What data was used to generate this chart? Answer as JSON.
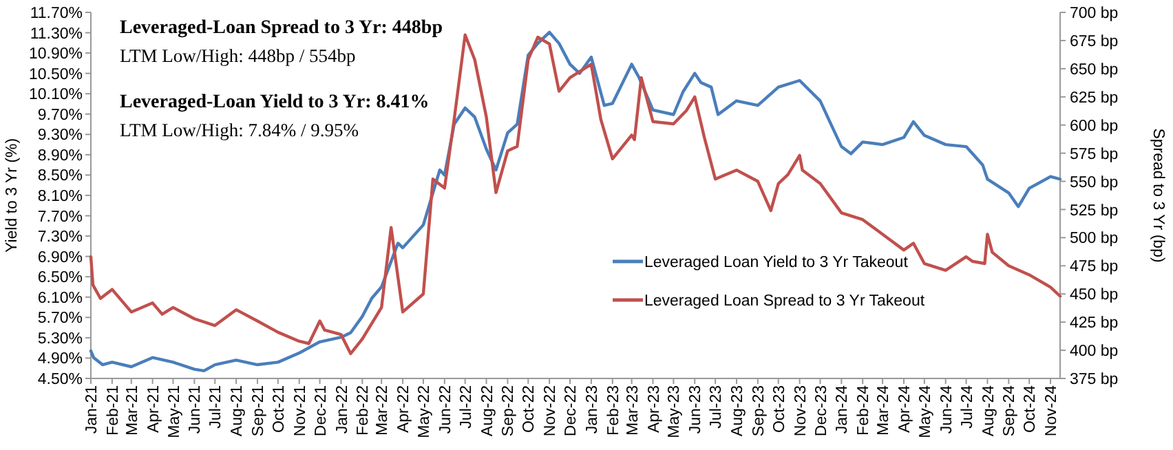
{
  "chart_data": {
    "type": "line",
    "ylabel": "Yield to 3 Yr (%)",
    "y2label": "Spread to 3 Yr (bp)",
    "annotations": [
      "Leveraged-Loan Spread to 3 Yr: 448bp",
      "LTM Low/High: 448bp / 554bp",
      "Leveraged-Loan Yield to 3 Yr: 8.41%",
      "LTM Low/High: 7.84% / 9.95%"
    ],
    "xlim": [
      "2021-01-01",
      "2024-11-15"
    ],
    "xticks": [
      {
        "value": "2021-01-01",
        "label": "Jan-21"
      },
      {
        "value": "2021-02-01",
        "label": "Feb-21"
      },
      {
        "value": "2021-03-01",
        "label": "Mar-21"
      },
      {
        "value": "2021-04-01",
        "label": "Apr-21"
      },
      {
        "value": "2021-05-01",
        "label": "May-21"
      },
      {
        "value": "2021-06-01",
        "label": "Jun-21"
      },
      {
        "value": "2021-07-01",
        "label": "Jul-21"
      },
      {
        "value": "2021-08-01",
        "label": "Aug-21"
      },
      {
        "value": "2021-09-01",
        "label": "Sep-21"
      },
      {
        "value": "2021-10-01",
        "label": "Oct-21"
      },
      {
        "value": "2021-11-01",
        "label": "Nov-21"
      },
      {
        "value": "2021-12-01",
        "label": "Dec-21"
      },
      {
        "value": "2022-01-01",
        "label": "Jan-22"
      },
      {
        "value": "2022-02-01",
        "label": "Feb-22"
      },
      {
        "value": "2022-03-01",
        "label": "Mar-22"
      },
      {
        "value": "2022-04-01",
        "label": "Apr-22"
      },
      {
        "value": "2022-05-01",
        "label": "May-22"
      },
      {
        "value": "2022-06-01",
        "label": "Jun-22"
      },
      {
        "value": "2022-07-01",
        "label": "Jul-22"
      },
      {
        "value": "2022-08-01",
        "label": "Aug-22"
      },
      {
        "value": "2022-09-01",
        "label": "Sep-22"
      },
      {
        "value": "2022-10-01",
        "label": "Oct-22"
      },
      {
        "value": "2022-11-01",
        "label": "Nov-22"
      },
      {
        "value": "2022-12-01",
        "label": "Dec-22"
      },
      {
        "value": "2023-01-01",
        "label": "Jan-23"
      },
      {
        "value": "2023-02-01",
        "label": "Feb-23"
      },
      {
        "value": "2023-03-01",
        "label": "Mar-23"
      },
      {
        "value": "2023-04-01",
        "label": "Apr-23"
      },
      {
        "value": "2023-05-01",
        "label": "May-23"
      },
      {
        "value": "2023-06-01",
        "label": "Jun-23"
      },
      {
        "value": "2023-07-01",
        "label": "Jul-23"
      },
      {
        "value": "2023-08-01",
        "label": "Aug-23"
      },
      {
        "value": "2023-09-01",
        "label": "Sep-23"
      },
      {
        "value": "2023-10-01",
        "label": "Oct-23"
      },
      {
        "value": "2023-11-01",
        "label": "Nov-23"
      },
      {
        "value": "2023-12-01",
        "label": "Dec-23"
      },
      {
        "value": "2024-01-01",
        "label": "Jan-24"
      },
      {
        "value": "2024-02-01",
        "label": "Feb-24"
      },
      {
        "value": "2024-03-01",
        "label": "Mar-24"
      },
      {
        "value": "2024-04-01",
        "label": "Apr-24"
      },
      {
        "value": "2024-05-01",
        "label": "May-24"
      },
      {
        "value": "2024-06-01",
        "label": "Jun-24"
      },
      {
        "value": "2024-07-01",
        "label": "Jul-24"
      },
      {
        "value": "2024-08-01",
        "label": "Aug-24"
      },
      {
        "value": "2024-09-01",
        "label": "Sep-24"
      },
      {
        "value": "2024-10-01",
        "label": "Oct-24"
      },
      {
        "value": "2024-11-01",
        "label": "Nov-24"
      }
    ],
    "ylim": [
      4.5,
      11.7
    ],
    "yticks": [
      {
        "value": 4.5,
        "label": "4.50%"
      },
      {
        "value": 4.9,
        "label": "4.90%"
      },
      {
        "value": 5.3,
        "label": "5.30%"
      },
      {
        "value": 5.7,
        "label": "5.70%"
      },
      {
        "value": 6.1,
        "label": "6.10%"
      },
      {
        "value": 6.5,
        "label": "6.50%"
      },
      {
        "value": 6.9,
        "label": "6.90%"
      },
      {
        "value": 7.3,
        "label": "7.30%"
      },
      {
        "value": 7.7,
        "label": "7.70%"
      },
      {
        "value": 8.1,
        "label": "8.10%"
      },
      {
        "value": 8.5,
        "label": "8.50%"
      },
      {
        "value": 8.9,
        "label": "8.90%"
      },
      {
        "value": 9.3,
        "label": "9.30%"
      },
      {
        "value": 9.7,
        "label": "9.70%"
      },
      {
        "value": 10.1,
        "label": "10.10%"
      },
      {
        "value": 10.5,
        "label": "10.50%"
      },
      {
        "value": 10.9,
        "label": "10.90%"
      },
      {
        "value": 11.3,
        "label": "11.30%"
      },
      {
        "value": 11.7,
        "label": "11.70%"
      }
    ],
    "y2lim": [
      375,
      700
    ],
    "y2ticks": [
      {
        "value": 375,
        "label": "375 bp"
      },
      {
        "value": 400,
        "label": "400 bp"
      },
      {
        "value": 425,
        "label": "425 bp"
      },
      {
        "value": 450,
        "label": "450 bp"
      },
      {
        "value": 475,
        "label": "475 bp"
      },
      {
        "value": 500,
        "label": "500 bp"
      },
      {
        "value": 525,
        "label": "525 bp"
      },
      {
        "value": 550,
        "label": "550 bp"
      },
      {
        "value": 575,
        "label": "575 bp"
      },
      {
        "value": 600,
        "label": "600 bp"
      },
      {
        "value": 625,
        "label": "625 bp"
      },
      {
        "value": 650,
        "label": "650 bp"
      },
      {
        "value": 675,
        "label": "675 bp"
      },
      {
        "value": 700,
        "label": "700 bp"
      }
    ],
    "grid": false,
    "legend": "right",
    "line_style": "solid",
    "series": [
      {
        "name": "Leveraged Loan Yield to 3 Yr Takeout",
        "color": "#4a7ebb",
        "x": [
          "2021-01-01",
          "2021-01-05",
          "2021-01-18",
          "2021-02-01",
          "2021-03-01",
          "2021-04-01",
          "2021-05-01",
          "2021-06-01",
          "2021-06-15",
          "2021-07-01",
          "2021-08-01",
          "2021-09-01",
          "2021-10-01",
          "2021-11-01",
          "2021-12-01",
          "2022-01-01",
          "2022-01-15",
          "2022-02-01",
          "2022-02-15",
          "2022-03-01",
          "2022-03-15",
          "2022-03-25",
          "2022-04-01",
          "2022-05-01",
          "2022-05-15",
          "2022-05-25",
          "2022-06-01",
          "2022-06-15",
          "2022-07-01",
          "2022-07-15",
          "2022-08-01",
          "2022-08-15",
          "2022-09-01",
          "2022-09-15",
          "2022-10-01",
          "2022-10-15",
          "2022-11-01",
          "2022-11-15",
          "2022-12-01",
          "2022-12-15",
          "2023-01-01",
          "2023-01-20",
          "2023-02-01",
          "2023-03-01",
          "2023-03-12",
          "2023-04-01",
          "2023-05-01",
          "2023-05-15",
          "2023-06-01",
          "2023-06-10",
          "2023-06-25",
          "2023-07-05",
          "2023-08-01",
          "2023-09-01",
          "2023-10-01",
          "2023-11-01",
          "2023-12-01",
          "2023-12-15",
          "2024-01-01",
          "2024-01-15",
          "2024-02-01",
          "2024-03-01",
          "2024-04-01",
          "2024-04-15",
          "2024-05-01",
          "2024-06-01",
          "2024-07-01",
          "2024-07-25",
          "2024-08-01",
          "2024-09-01",
          "2024-09-15",
          "2024-10-01",
          "2024-11-01",
          "2024-11-15"
        ],
        "values": [
          5.04,
          4.91,
          4.77,
          4.82,
          4.73,
          4.91,
          4.82,
          4.68,
          4.65,
          4.77,
          4.86,
          4.77,
          4.82,
          5.0,
          5.22,
          5.31,
          5.4,
          5.72,
          6.08,
          6.3,
          6.8,
          7.16,
          7.07,
          7.52,
          8.15,
          8.6,
          8.5,
          9.5,
          9.82,
          9.64,
          9.01,
          8.6,
          9.33,
          9.5,
          10.86,
          11.09,
          11.31,
          11.09,
          10.68,
          10.5,
          10.82,
          9.87,
          9.91,
          10.68,
          10.41,
          9.78,
          9.69,
          10.14,
          10.5,
          10.32,
          10.23,
          9.69,
          9.96,
          9.87,
          10.23,
          10.36,
          9.96,
          9.55,
          9.06,
          8.92,
          9.15,
          9.1,
          9.24,
          9.55,
          9.28,
          9.1,
          9.06,
          8.7,
          8.42,
          8.15,
          7.88,
          8.24,
          8.47,
          8.42
        ]
      },
      {
        "name": "Leveraged Loan Spread to 3 Yr Takeout",
        "color": "#c0504d",
        "axis": "y2",
        "x": [
          "2021-01-01",
          "2021-01-04",
          "2021-01-15",
          "2021-02-01",
          "2021-03-01",
          "2021-04-01",
          "2021-04-15",
          "2021-05-01",
          "2021-06-01",
          "2021-07-01",
          "2021-08-01",
          "2021-09-01",
          "2021-10-01",
          "2021-11-01",
          "2021-11-15",
          "2021-12-01",
          "2021-12-08",
          "2022-01-01",
          "2022-01-15",
          "2022-02-01",
          "2022-03-01",
          "2022-03-15",
          "2022-04-01",
          "2022-05-01",
          "2022-05-15",
          "2022-06-01",
          "2022-06-15",
          "2022-07-01",
          "2022-07-15",
          "2022-08-01",
          "2022-08-15",
          "2022-09-01",
          "2022-09-15",
          "2022-10-01",
          "2022-10-15",
          "2022-11-01",
          "2022-11-15",
          "2022-12-01",
          "2023-01-01",
          "2023-01-15",
          "2023-02-01",
          "2023-03-01",
          "2023-03-05",
          "2023-03-15",
          "2023-04-01",
          "2023-05-01",
          "2023-05-20",
          "2023-06-01",
          "2023-06-15",
          "2023-07-01",
          "2023-08-01",
          "2023-09-01",
          "2023-09-20",
          "2023-10-01",
          "2023-10-15",
          "2023-11-01",
          "2023-11-05",
          "2023-12-01",
          "2024-01-01",
          "2024-02-01",
          "2024-03-01",
          "2024-04-01",
          "2024-04-15",
          "2024-05-01",
          "2024-06-01",
          "2024-07-01",
          "2024-07-10",
          "2024-07-28",
          "2024-08-01",
          "2024-08-08",
          "2024-09-01",
          "2024-10-01",
          "2024-11-01",
          "2024-11-15"
        ],
        "values": [
          483,
          458,
          446,
          454,
          434,
          442,
          432,
          438,
          428,
          422,
          436,
          426,
          416,
          408,
          406,
          426,
          418,
          414,
          397,
          410,
          438,
          509,
          434,
          450,
          552,
          544,
          605,
          680,
          658,
          607,
          540,
          577,
          581,
          658,
          678,
          672,
          630,
          642,
          654,
          605,
          570,
          591,
          587,
          642,
          603,
          601,
          613,
          625,
          589,
          552,
          560,
          550,
          524,
          548,
          556,
          573,
          560,
          548,
          522,
          516,
          503,
          489,
          495,
          477,
          471,
          483,
          479,
          477,
          503,
          487,
          475,
          467,
          456,
          448
        ]
      }
    ]
  }
}
